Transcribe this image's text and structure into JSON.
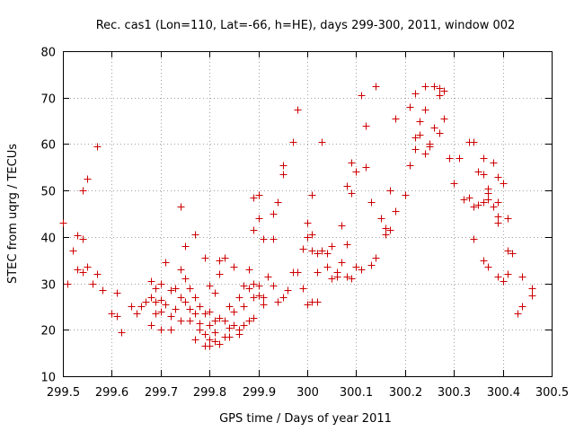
{
  "chart_data": {
    "type": "scatter",
    "title": "Rec. cas1 (Lon=110, Lat=-66, h=HE), days 299-300, 2011, window 002",
    "xlabel": "GPS time / Days of year 2011",
    "ylabel": "STEC from uqrg / TECUs",
    "xlim": [
      299.5,
      300.5
    ],
    "ylim": [
      10,
      80
    ],
    "grid": true,
    "x_ticks": [
      299.5,
      299.6,
      299.7,
      299.8,
      299.9,
      300.0,
      300.1,
      300.2,
      300.3,
      300.4,
      300.5
    ],
    "x_tick_labels": [
      "299.5",
      "299.6",
      "299.7",
      "299.8",
      "299.9",
      "300",
      "300.1",
      "300.2",
      "300.3",
      "300.4",
      "300.5"
    ],
    "y_ticks": [
      10,
      20,
      30,
      40,
      50,
      60,
      70,
      80
    ],
    "y_tick_labels": [
      "10",
      "20",
      "30",
      "40",
      "50",
      "60",
      "70",
      "80"
    ],
    "marker_color": "#cc0000",
    "series": [
      {
        "name": "STEC",
        "marker": "+",
        "points": [
          [
            299.5,
            43.0
          ],
          [
            299.51,
            30.0
          ],
          [
            299.52,
            37.0
          ],
          [
            299.53,
            40.3
          ],
          [
            299.53,
            33.0
          ],
          [
            299.54,
            39.5
          ],
          [
            299.54,
            32.5
          ],
          [
            299.54,
            50.0
          ],
          [
            299.55,
            52.5
          ],
          [
            299.55,
            33.5
          ],
          [
            299.56,
            30.0
          ],
          [
            299.57,
            59.5
          ],
          [
            299.57,
            32.0
          ],
          [
            299.58,
            28.5
          ],
          [
            299.6,
            23.5
          ],
          [
            299.61,
            23.0
          ],
          [
            299.61,
            28.0
          ],
          [
            299.62,
            19.5
          ],
          [
            299.64,
            25.0
          ],
          [
            299.65,
            23.5
          ],
          [
            299.66,
            25.0
          ],
          [
            299.67,
            26.0
          ],
          [
            299.68,
            30.5
          ],
          [
            299.68,
            27.0
          ],
          [
            299.68,
            21.0
          ],
          [
            299.69,
            29.0
          ],
          [
            299.69,
            26.0
          ],
          [
            299.69,
            23.5
          ],
          [
            299.7,
            20.0
          ],
          [
            299.7,
            26.5
          ],
          [
            299.7,
            24.0
          ],
          [
            299.7,
            30.0
          ],
          [
            299.71,
            34.5
          ],
          [
            299.71,
            25.5
          ],
          [
            299.72,
            23.0
          ],
          [
            299.72,
            28.5
          ],
          [
            299.72,
            20.0
          ],
          [
            299.73,
            29.0
          ],
          [
            299.73,
            24.5
          ],
          [
            299.74,
            22.0
          ],
          [
            299.74,
            27.0
          ],
          [
            299.74,
            33.0
          ],
          [
            299.74,
            46.5
          ],
          [
            299.75,
            26.0
          ],
          [
            299.75,
            31.0
          ],
          [
            299.75,
            38.0
          ],
          [
            299.76,
            22.0
          ],
          [
            299.76,
            29.0
          ],
          [
            299.76,
            24.5
          ],
          [
            299.77,
            40.5
          ],
          [
            299.77,
            27.0
          ],
          [
            299.77,
            23.5
          ],
          [
            299.77,
            18.0
          ],
          [
            299.78,
            25.0
          ],
          [
            299.78,
            20.0
          ],
          [
            299.78,
            21.5
          ],
          [
            299.79,
            35.5
          ],
          [
            299.79,
            23.5
          ],
          [
            299.79,
            19.0
          ],
          [
            299.79,
            16.5
          ],
          [
            299.8,
            29.5
          ],
          [
            299.8,
            24.0
          ],
          [
            299.8,
            18.0
          ],
          [
            299.8,
            21.0
          ],
          [
            299.8,
            16.5
          ],
          [
            299.81,
            28.0
          ],
          [
            299.81,
            19.5
          ],
          [
            299.81,
            17.5
          ],
          [
            299.81,
            22.0
          ],
          [
            299.82,
            35.0
          ],
          [
            299.82,
            22.5
          ],
          [
            299.82,
            17.0
          ],
          [
            299.82,
            32.0
          ],
          [
            299.83,
            18.5
          ],
          [
            299.83,
            22.0
          ],
          [
            299.83,
            35.5
          ],
          [
            299.84,
            25.0
          ],
          [
            299.84,
            20.5
          ],
          [
            299.84,
            18.5
          ],
          [
            299.85,
            33.5
          ],
          [
            299.85,
            24.0
          ],
          [
            299.85,
            21.0
          ],
          [
            299.86,
            19.0
          ],
          [
            299.86,
            20.0
          ],
          [
            299.86,
            27.0
          ],
          [
            299.87,
            29.5
          ],
          [
            299.87,
            25.0
          ],
          [
            299.87,
            21.0
          ],
          [
            299.88,
            29.0
          ],
          [
            299.88,
            22.0
          ],
          [
            299.88,
            33.0
          ],
          [
            299.89,
            48.5
          ],
          [
            299.89,
            41.5
          ],
          [
            299.89,
            30.0
          ],
          [
            299.89,
            27.0
          ],
          [
            299.89,
            22.5
          ],
          [
            299.9,
            49.0
          ],
          [
            299.9,
            44.0
          ],
          [
            299.9,
            29.5
          ],
          [
            299.9,
            27.5
          ],
          [
            299.91,
            39.5
          ],
          [
            299.91,
            27.0
          ],
          [
            299.91,
            25.5
          ],
          [
            299.92,
            31.5
          ],
          [
            299.93,
            45.0
          ],
          [
            299.93,
            39.5
          ],
          [
            299.93,
            29.5
          ],
          [
            299.94,
            47.5
          ],
          [
            299.94,
            26.0
          ],
          [
            299.95,
            55.5
          ],
          [
            299.95,
            53.5
          ],
          [
            299.95,
            27.0
          ],
          [
            299.96,
            28.5
          ],
          [
            299.97,
            60.5
          ],
          [
            299.97,
            32.5
          ],
          [
            299.98,
            67.5
          ],
          [
            299.98,
            32.5
          ],
          [
            299.99,
            37.5
          ],
          [
            299.99,
            29.0
          ],
          [
            300.0,
            43.0
          ],
          [
            300.0,
            40.0
          ],
          [
            300.0,
            25.5
          ],
          [
            300.01,
            49.0
          ],
          [
            300.01,
            40.5
          ],
          [
            300.01,
            37.0
          ],
          [
            300.01,
            26.0
          ],
          [
            300.02,
            36.5
          ],
          [
            300.02,
            32.5
          ],
          [
            300.02,
            26.0
          ],
          [
            300.03,
            60.5
          ],
          [
            300.03,
            37.0
          ],
          [
            300.04,
            33.5
          ],
          [
            300.04,
            36.5
          ],
          [
            300.05,
            38.0
          ],
          [
            300.05,
            31.0
          ],
          [
            300.06,
            32.5
          ],
          [
            300.06,
            31.5
          ],
          [
            300.07,
            42.5
          ],
          [
            300.07,
            34.5
          ],
          [
            300.08,
            51.0
          ],
          [
            300.08,
            38.5
          ],
          [
            300.08,
            31.5
          ],
          [
            300.09,
            56.0
          ],
          [
            300.09,
            49.5
          ],
          [
            300.09,
            31.0
          ],
          [
            300.1,
            54.0
          ],
          [
            300.1,
            33.5
          ],
          [
            300.11,
            70.5
          ],
          [
            300.11,
            33.0
          ],
          [
            300.12,
            55.0
          ],
          [
            300.12,
            64.0
          ],
          [
            300.13,
            34.0
          ],
          [
            300.13,
            47.5
          ],
          [
            300.14,
            72.5
          ],
          [
            300.14,
            35.5
          ],
          [
            300.15,
            44.0
          ],
          [
            300.16,
            42.0
          ],
          [
            300.16,
            40.5
          ],
          [
            300.17,
            41.5
          ],
          [
            300.17,
            50.0
          ],
          [
            300.18,
            45.5
          ],
          [
            300.18,
            65.5
          ],
          [
            300.2,
            49.0
          ],
          [
            300.21,
            68.0
          ],
          [
            300.21,
            55.5
          ],
          [
            300.22,
            59.0
          ],
          [
            300.22,
            61.5
          ],
          [
            300.22,
            71.0
          ],
          [
            300.23,
            65.0
          ],
          [
            300.23,
            62.0
          ],
          [
            300.24,
            67.5
          ],
          [
            300.24,
            72.5
          ],
          [
            300.24,
            58.0
          ],
          [
            300.25,
            59.5
          ],
          [
            300.25,
            60.0
          ],
          [
            300.26,
            63.5
          ],
          [
            300.26,
            72.5
          ],
          [
            300.27,
            72.0
          ],
          [
            300.27,
            70.5
          ],
          [
            300.27,
            62.5
          ],
          [
            300.28,
            71.5
          ],
          [
            300.28,
            65.5
          ],
          [
            300.29,
            57.0
          ],
          [
            300.3,
            51.5
          ],
          [
            300.31,
            57.0
          ],
          [
            300.32,
            48.0
          ],
          [
            300.33,
            48.5
          ],
          [
            300.33,
            60.5
          ],
          [
            300.34,
            60.5
          ],
          [
            300.34,
            46.5
          ],
          [
            300.34,
            39.5
          ],
          [
            300.35,
            54.0
          ],
          [
            300.35,
            47.0
          ],
          [
            300.36,
            57.0
          ],
          [
            300.36,
            53.5
          ],
          [
            300.36,
            47.5
          ],
          [
            300.36,
            35.0
          ],
          [
            300.37,
            50.5
          ],
          [
            300.37,
            49.5
          ],
          [
            300.37,
            48.0
          ],
          [
            300.37,
            33.5
          ],
          [
            300.38,
            56.0
          ],
          [
            300.38,
            46.5
          ],
          [
            300.39,
            44.5
          ],
          [
            300.39,
            53.0
          ],
          [
            300.39,
            47.5
          ],
          [
            300.39,
            43.0
          ],
          [
            300.39,
            31.5
          ],
          [
            300.4,
            30.5
          ],
          [
            300.4,
            51.5
          ],
          [
            300.41,
            44.0
          ],
          [
            300.41,
            37.0
          ],
          [
            300.41,
            32.0
          ],
          [
            300.42,
            36.5
          ],
          [
            300.43,
            23.5
          ],
          [
            300.44,
            31.5
          ],
          [
            300.44,
            25.0
          ],
          [
            300.46,
            29.0
          ],
          [
            300.46,
            27.5
          ]
        ]
      }
    ]
  }
}
